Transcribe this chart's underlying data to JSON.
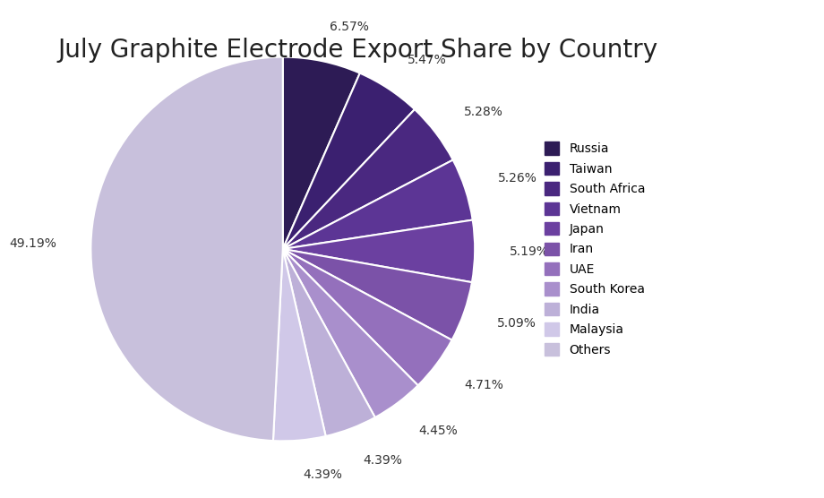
{
  "title": "July Graphite Electrode Export Share by Country",
  "labels": [
    "Russia",
    "Taiwan",
    "South Africa",
    "Vietnam",
    "Japan",
    "Iran",
    "UAE",
    "South Korea",
    "India",
    "Malaysia",
    "Others"
  ],
  "values": [
    6.57,
    5.47,
    5.28,
    5.26,
    5.19,
    5.09,
    4.71,
    4.45,
    4.39,
    4.39,
    49.19
  ],
  "colors": [
    "#2D1B55",
    "#3B2070",
    "#4A2880",
    "#5C3595",
    "#6B40A0",
    "#7B52A8",
    "#9470BC",
    "#A98FCC",
    "#BDB0D8",
    "#D0C8E8",
    "#C8C0DC"
  ],
  "startangle": 90,
  "title_fontsize": 20,
  "label_fontsize": 10,
  "legend_fontsize": 10,
  "background_color": "#ffffff"
}
